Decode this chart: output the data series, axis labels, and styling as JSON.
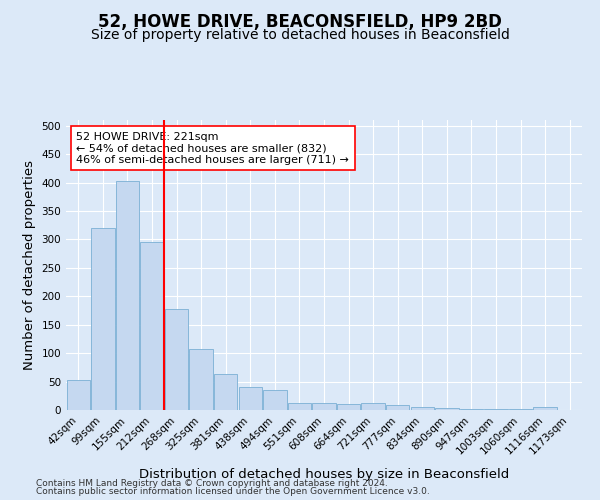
{
  "title": "52, HOWE DRIVE, BEACONSFIELD, HP9 2BD",
  "subtitle": "Size of property relative to detached houses in Beaconsfield",
  "xlabel": "Distribution of detached houses by size in Beaconsfield",
  "ylabel": "Number of detached properties",
  "footer_line1": "Contains HM Land Registry data © Crown copyright and database right 2024.",
  "footer_line2": "Contains public sector information licensed under the Open Government Licence v3.0.",
  "bar_labels": [
    "42sqm",
    "99sqm",
    "155sqm",
    "212sqm",
    "268sqm",
    "325sqm",
    "381sqm",
    "438sqm",
    "494sqm",
    "551sqm",
    "608sqm",
    "664sqm",
    "721sqm",
    "777sqm",
    "834sqm",
    "890sqm",
    "947sqm",
    "1003sqm",
    "1060sqm",
    "1116sqm",
    "1173sqm"
  ],
  "bar_values": [
    53,
    320,
    403,
    295,
    178,
    107,
    63,
    40,
    36,
    12,
    12,
    10,
    13,
    8,
    5,
    3,
    2,
    1,
    1,
    5,
    0
  ],
  "bar_color": "#c5d8f0",
  "bar_edge_color": "#7bafd4",
  "vline_x": 3.5,
  "vline_color": "red",
  "annotation_text": "52 HOWE DRIVE: 221sqm\n← 54% of detached houses are smaller (832)\n46% of semi-detached houses are larger (711) →",
  "annotation_box_color": "white",
  "annotation_box_edge": "red",
  "ylim": [
    0,
    510
  ],
  "yticks": [
    0,
    50,
    100,
    150,
    200,
    250,
    300,
    350,
    400,
    450,
    500
  ],
  "background_color": "#dce9f8",
  "axes_bg_color": "#dce9f8",
  "grid_color": "white",
  "title_fontsize": 12,
  "subtitle_fontsize": 10,
  "tick_fontsize": 7.5,
  "label_fontsize": 9.5,
  "footer_fontsize": 6.5
}
